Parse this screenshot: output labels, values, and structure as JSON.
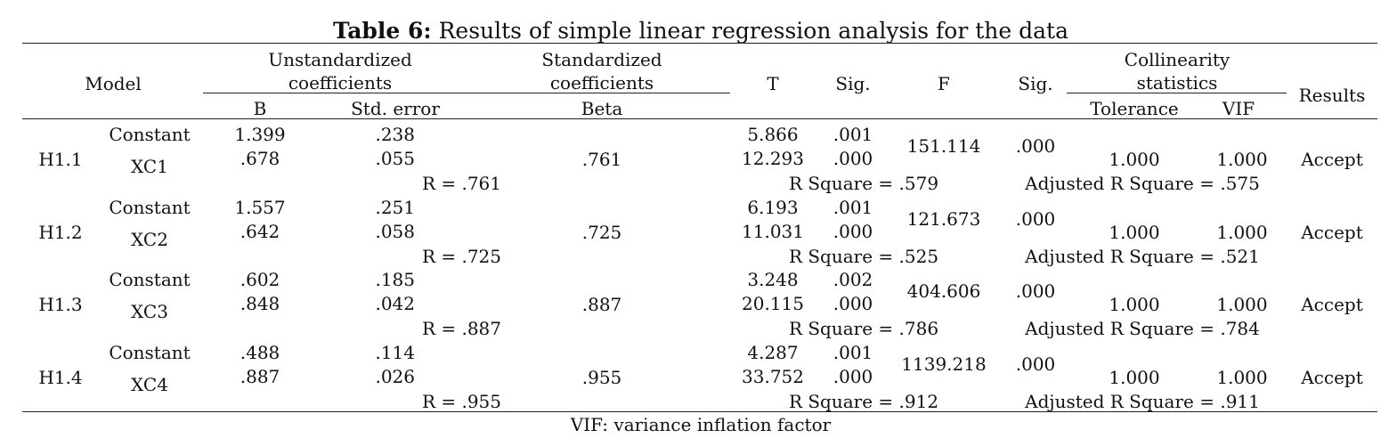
{
  "title": {
    "label": "Table 6:",
    "text": "Results of simple linear regression analysis for the data"
  },
  "header": {
    "model": "Model",
    "unstd_line1": "Unstandardized",
    "unstd_line2": "coefficients",
    "std_line1": "Standardized",
    "std_line2": "coefficients",
    "t": "T",
    "sig1": "Sig.",
    "f": "F",
    "sig2": "Sig.",
    "coll_line1": "Collinearity",
    "coll_line2": "statistics",
    "results": "Results",
    "b": "B",
    "std_error": "Std. error",
    "beta": "Beta",
    "tolerance": "Tolerance",
    "vif": "VIF"
  },
  "rows": [
    {
      "model": "H1.1",
      "constant": "Constant",
      "var": "XC1",
      "b_const": "1.399",
      "b_var": ".678",
      "se_const": ".238",
      "se_var": ".055",
      "beta": ".761",
      "t_const": "5.866",
      "t_var": "12.293",
      "sig_const": ".001",
      "sig_var": ".000",
      "f": "151.114",
      "f_sig": ".000",
      "tolerance": "1.000",
      "vif": "1.000",
      "result": "Accept",
      "r": "R = .761",
      "r_square": "R Square = .579",
      "adj_r_square": "Adjusted R Square = .575"
    },
    {
      "model": "H1.2",
      "constant": "Constant",
      "var": "XC2",
      "b_const": "1.557",
      "b_var": ".642",
      "se_const": ".251",
      "se_var": ".058",
      "beta": ".725",
      "t_const": "6.193",
      "t_var": "11.031",
      "sig_const": ".001",
      "sig_var": ".000",
      "f": "121.673",
      "f_sig": ".000",
      "tolerance": "1.000",
      "vif": "1.000",
      "result": "Accept",
      "r": "R = .725",
      "r_square": "R Square = .525",
      "adj_r_square": "Adjusted R Square = .521"
    },
    {
      "model": "H1.3",
      "constant": "Constant",
      "var": "XC3",
      "b_const": ".602",
      "b_var": ".848",
      "se_const": ".185",
      "se_var": ".042",
      "beta": ".887",
      "t_const": "3.248",
      "t_var": "20.115",
      "sig_const": ".002",
      "sig_var": ".000",
      "f": "404.606",
      "f_sig": ".000",
      "tolerance": "1.000",
      "vif": "1.000",
      "result": "Accept",
      "r": "R = .887",
      "r_square": "R Square = .786",
      "adj_r_square": "Adjusted R Square = .784"
    },
    {
      "model": "H1.4",
      "constant": "Constant",
      "var": "XC4",
      "b_const": ".488",
      "b_var": ".887",
      "se_const": ".114",
      "se_var": ".026",
      "beta": ".955",
      "t_const": "4.287",
      "t_var": "33.752",
      "sig_const": ".001",
      "sig_var": ".000",
      "f": "1139.218",
      "f_sig": ".000",
      "tolerance": "1.000",
      "vif": "1.000",
      "result": "Accept",
      "r": "R = .955",
      "r_square": "R Square = .912",
      "adj_r_square": "Adjusted R Square = .911"
    }
  ],
  "footnote": "VIF: variance inflation factor"
}
